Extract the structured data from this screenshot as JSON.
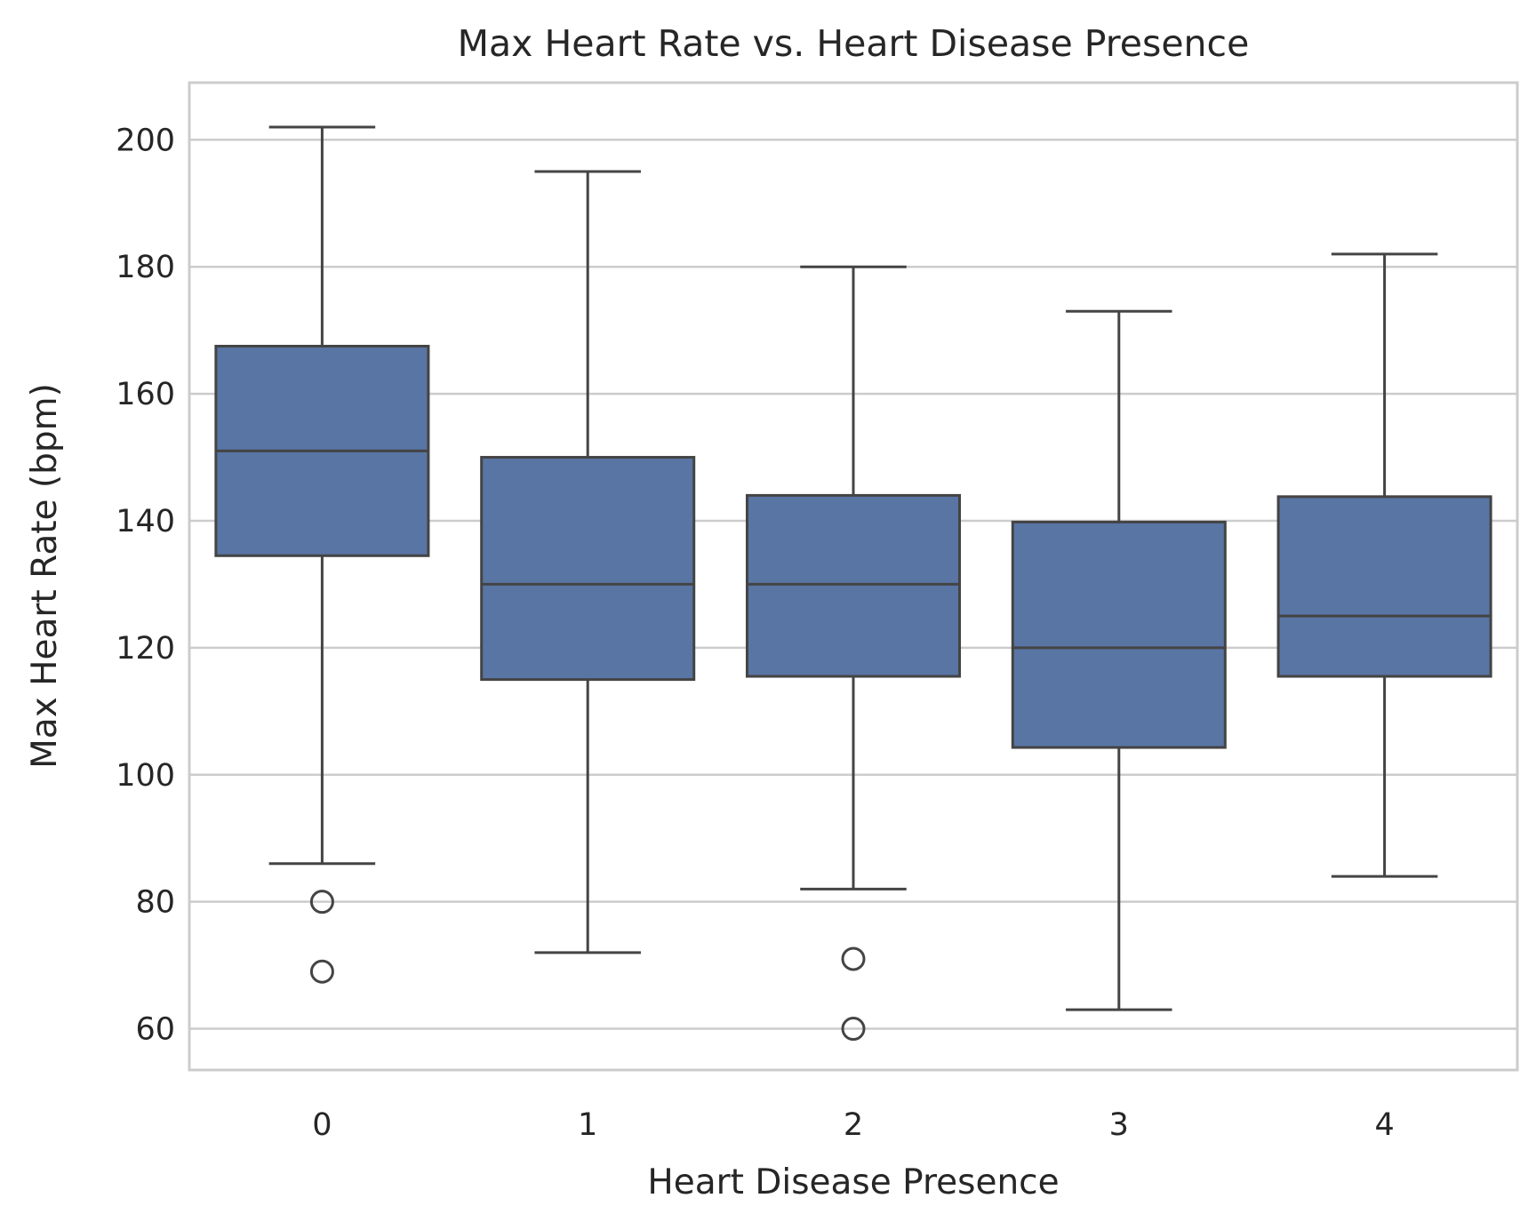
{
  "chart_data": {
    "type": "box",
    "title": "Max Heart Rate vs. Heart Disease Presence",
    "xlabel": "Heart Disease Presence",
    "ylabel": "Max Heart Rate (bpm)",
    "categories": [
      "0",
      "1",
      "2",
      "3",
      "4"
    ],
    "ylim": [
      53.5,
      209
    ],
    "yticks": [
      60,
      80,
      100,
      120,
      140,
      160,
      180,
      200
    ],
    "grid": true,
    "box_color": "#5875a4",
    "line_color": "#444444",
    "boxes": [
      {
        "category": "0",
        "whisker_low": 86,
        "q1": 134.5,
        "median": 151,
        "q3": 167.5,
        "whisker_high": 202,
        "outliers": [
          80,
          69
        ]
      },
      {
        "category": "1",
        "whisker_low": 72,
        "q1": 115,
        "median": 130,
        "q3": 150,
        "whisker_high": 195,
        "outliers": []
      },
      {
        "category": "2",
        "whisker_low": 82,
        "q1": 115.5,
        "median": 130,
        "q3": 144,
        "whisker_high": 180,
        "outliers": [
          71,
          60
        ]
      },
      {
        "category": "3",
        "whisker_low": 63,
        "q1": 104.3,
        "median": 120,
        "q3": 139.8,
        "whisker_high": 173,
        "outliers": []
      },
      {
        "category": "4",
        "whisker_low": 84,
        "q1": 115.5,
        "median": 125,
        "q3": 143.8,
        "whisker_high": 182,
        "outliers": []
      }
    ]
  }
}
